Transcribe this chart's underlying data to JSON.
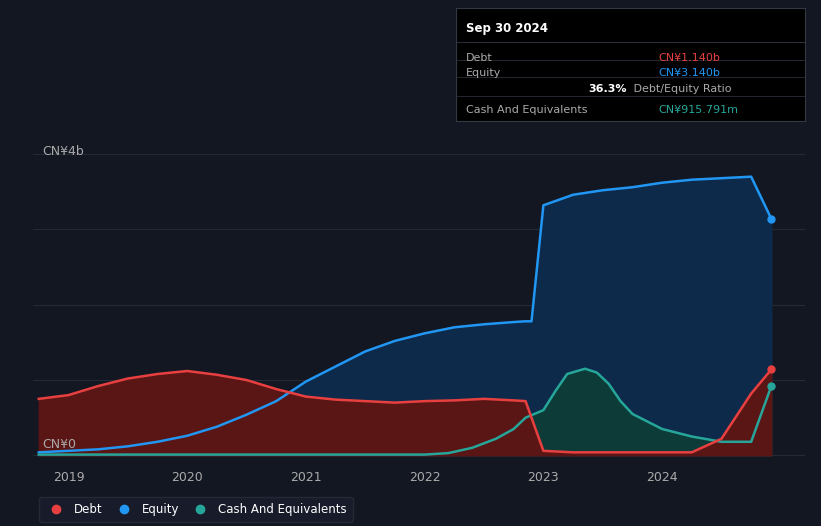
{
  "background_color": "#131722",
  "plot_bg_color": "#131722",
  "title": "Sep 30 2024",
  "ylabel_top": "CN¥4b",
  "ylabel_bottom": "CN¥0",
  "x_ticks": [
    2019,
    2020,
    2021,
    2022,
    2023,
    2024
  ],
  "x_min": 2018.7,
  "x_max": 2025.2,
  "y_min": -0.1,
  "y_max": 4.3,
  "grid_color": "#2a2e39",
  "debt_color": "#e84040",
  "equity_color": "#2196f3",
  "cash_color": "#26a69a",
  "debt_fill": "#5a1515",
  "equity_fill": "#0d2a4a",
  "cash_fill": "#0d3b38",
  "tooltip_bg": "#000000",
  "tooltip_border": "#333844",
  "debt_value": "CN¥1.140b",
  "equity_value": "CN¥3.140b",
  "ratio_value": "36.3%",
  "cash_value": "CN¥915.791m",
  "legend_bg": "#1a1e2d",
  "legend_border": "#2a2e39",
  "debt_x": [
    2018.75,
    2019.0,
    2019.25,
    2019.5,
    2019.75,
    2020.0,
    2020.25,
    2020.5,
    2020.75,
    2021.0,
    2021.25,
    2021.5,
    2021.75,
    2022.0,
    2022.25,
    2022.5,
    2022.75,
    2022.85,
    2023.0,
    2023.25,
    2023.5,
    2023.75,
    2024.0,
    2024.25,
    2024.5,
    2024.75,
    2024.92
  ],
  "debt_y": [
    0.75,
    0.8,
    0.92,
    1.02,
    1.08,
    1.12,
    1.07,
    1.0,
    0.88,
    0.78,
    0.74,
    0.72,
    0.7,
    0.72,
    0.73,
    0.75,
    0.73,
    0.72,
    0.06,
    0.04,
    0.04,
    0.04,
    0.04,
    0.04,
    0.22,
    0.82,
    1.14
  ],
  "equity_x": [
    2018.75,
    2019.0,
    2019.25,
    2019.5,
    2019.75,
    2020.0,
    2020.25,
    2020.5,
    2020.75,
    2021.0,
    2021.25,
    2021.5,
    2021.75,
    2022.0,
    2022.25,
    2022.5,
    2022.75,
    2022.85,
    2022.9,
    2023.0,
    2023.25,
    2023.5,
    2023.75,
    2024.0,
    2024.25,
    2024.5,
    2024.75,
    2024.92
  ],
  "equity_y": [
    0.04,
    0.06,
    0.08,
    0.12,
    0.18,
    0.26,
    0.38,
    0.54,
    0.72,
    0.98,
    1.18,
    1.38,
    1.52,
    1.62,
    1.7,
    1.74,
    1.77,
    1.78,
    1.78,
    3.32,
    3.46,
    3.52,
    3.56,
    3.62,
    3.66,
    3.68,
    3.7,
    3.14
  ],
  "cash_x": [
    2018.75,
    2019.0,
    2019.5,
    2020.0,
    2020.5,
    2021.0,
    2021.5,
    2022.0,
    2022.2,
    2022.4,
    2022.6,
    2022.75,
    2022.85,
    2023.0,
    2023.1,
    2023.2,
    2023.35,
    2023.45,
    2023.55,
    2023.65,
    2023.75,
    2024.0,
    2024.25,
    2024.5,
    2024.75,
    2024.92
  ],
  "cash_y": [
    0.01,
    0.01,
    0.01,
    0.01,
    0.01,
    0.01,
    0.01,
    0.01,
    0.03,
    0.1,
    0.22,
    0.35,
    0.5,
    0.6,
    0.85,
    1.08,
    1.15,
    1.1,
    0.95,
    0.72,
    0.55,
    0.35,
    0.25,
    0.18,
    0.18,
    0.92
  ]
}
